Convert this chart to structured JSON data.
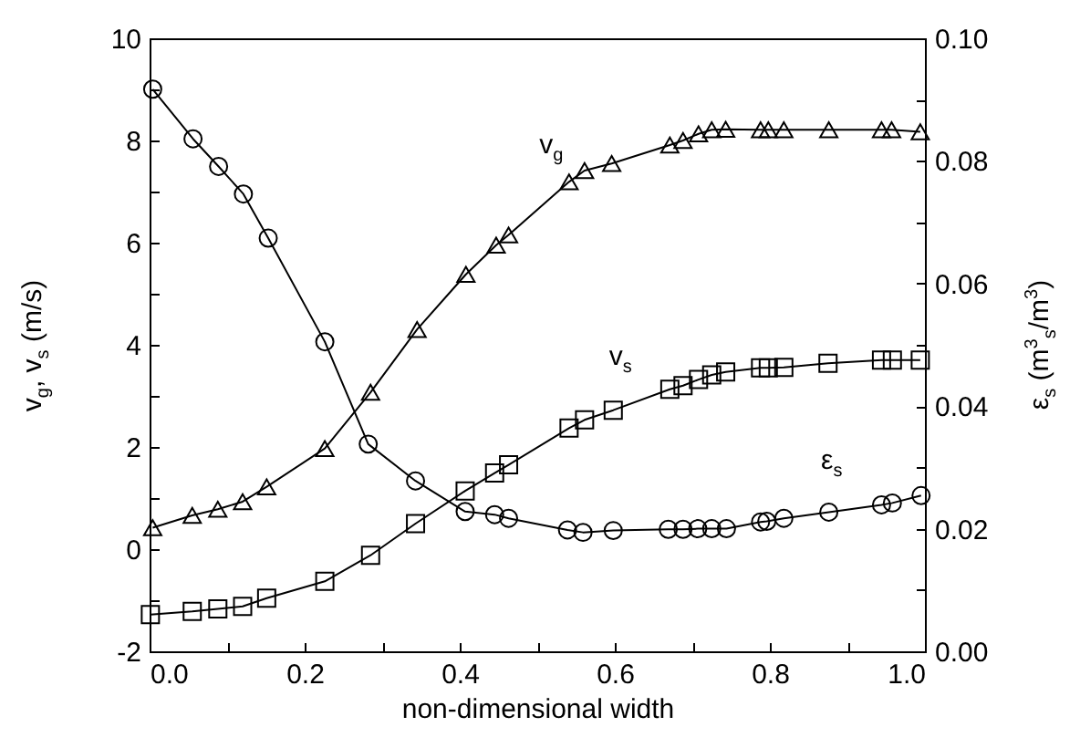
{
  "chart_data": {
    "type": "line",
    "xlabel": "non-dimensional width",
    "ylabel": "v$_{g}$, v$_{s}$ (m/s)",
    "y2label": "ε$_{s}$ (m$^{3}$$_{s}$/m$^{3}$)",
    "annotations": [
      {
        "text": "v$_{g}$",
        "x": 0.518,
        "y": 6.9
      },
      {
        "text": "v$_{s}$",
        "x": 0.608,
        "y": 2.77
      },
      {
        "text": "ε$_{s}$",
        "x": 0.88,
        "y": 0.74
      }
    ],
    "xlim": [
      0,
      1
    ],
    "xticks": [
      {
        "value": 0,
        "label": "0.0"
      },
      {
        "value": 0.1,
        "label": null
      },
      {
        "value": 0.2,
        "label": "0.2"
      },
      {
        "value": 0.3,
        "label": null
      },
      {
        "value": 0.4,
        "label": "0.4"
      },
      {
        "value": 0.5,
        "label": null
      },
      {
        "value": 0.6,
        "label": "0.6"
      },
      {
        "value": 0.7,
        "label": null
      },
      {
        "value": 0.8,
        "label": "0.8"
      },
      {
        "value": 0.9,
        "label": null
      },
      {
        "value": 1,
        "label": "1.0"
      }
    ],
    "ylim": [
      -2,
      10
    ],
    "yticks": [
      -2,
      {
        "value": -1,
        "label": null
      },
      0,
      {
        "value": 1,
        "label": null
      },
      2,
      {
        "value": 3,
        "label": null
      },
      4,
      {
        "value": 5,
        "label": null
      },
      6,
      {
        "value": 7,
        "label": null
      },
      8,
      {
        "value": 9,
        "label": null
      },
      10
    ],
    "y2lim": [
      0,
      0.1
    ],
    "y2ticks": [
      {
        "value": 0,
        "label": "0.00"
      },
      {
        "value": 0.01,
        "label": null
      },
      {
        "value": 0.02,
        "label": "0.02"
      },
      {
        "value": 0.03,
        "label": null
      },
      {
        "value": 0.04,
        "label": "0.04"
      },
      {
        "value": 0.05,
        "label": null
      },
      {
        "value": 0.06,
        "label": "0.06"
      },
      {
        "value": 0.07,
        "label": null
      },
      {
        "value": 0.08,
        "label": "0.08"
      },
      {
        "value": 0.09,
        "label": null
      },
      {
        "value": 0.1,
        "label": "0.10"
      }
    ],
    "series": [
      {
        "color": "#000000",
        "marker": "triangle",
        "x": [
          0.004,
          0.055,
          0.088,
          0.12,
          0.151,
          0.226,
          0.285,
          0.345,
          0.408,
          0.447,
          0.463,
          0.541,
          0.561,
          0.596,
          0.671,
          0.688,
          0.708,
          0.725,
          0.743,
          0.788,
          0.798,
          0.818,
          0.876,
          0.944,
          0.957,
          0.994
        ],
        "values": [
          0.42,
          0.66,
          0.78,
          0.93,
          1.22,
          1.97,
          3.07,
          4.3,
          5.38,
          5.95,
          6.15,
          7.19,
          7.41,
          7.55,
          7.91,
          8.0,
          8.13,
          8.21,
          8.22,
          8.21,
          8.21,
          8.21,
          8.21,
          8.21,
          8.21,
          8.17
        ]
      },
      {
        "color": "#000000",
        "marker": "square",
        "x": [
          0.001,
          0.055,
          0.088,
          0.12,
          0.151,
          0.226,
          0.285,
          0.343,
          0.407,
          0.445,
          0.463,
          0.541,
          0.561,
          0.598,
          0.671,
          0.688,
          0.708,
          0.725,
          0.743,
          0.788,
          0.798,
          0.818,
          0.875,
          0.944,
          0.958,
          0.994
        ],
        "values": [
          -1.28,
          -1.22,
          -1.17,
          -1.12,
          -0.96,
          -0.63,
          -0.12,
          0.5,
          1.14,
          1.49,
          1.65,
          2.37,
          2.53,
          2.72,
          3.13,
          3.2,
          3.32,
          3.41,
          3.47,
          3.55,
          3.55,
          3.56,
          3.64,
          3.7,
          3.7,
          3.7
        ]
      },
      {
        "color": "#000000",
        "marker": "circle",
        "axis": "y2",
        "x": [
          0.004,
          0.056,
          0.089,
          0.121,
          0.153,
          0.226,
          0.282,
          0.343,
          0.407,
          0.445,
          0.463,
          0.539,
          0.559,
          0.598,
          0.669,
          0.688,
          0.707,
          0.725,
          0.744,
          0.788,
          0.796,
          0.818,
          0.876,
          0.944,
          0.958,
          0.995
        ],
        "values": [
          0.0917,
          0.0836,
          0.0791,
          0.0746,
          0.0674,
          0.0505,
          0.0338,
          0.0278,
          0.0228,
          0.0223,
          0.0217,
          0.0198,
          0.0194,
          0.0197,
          0.0199,
          0.0199,
          0.02,
          0.02,
          0.02,
          0.0211,
          0.0212,
          0.0217,
          0.0227,
          0.0239,
          0.0242,
          0.0254
        ]
      }
    ]
  }
}
